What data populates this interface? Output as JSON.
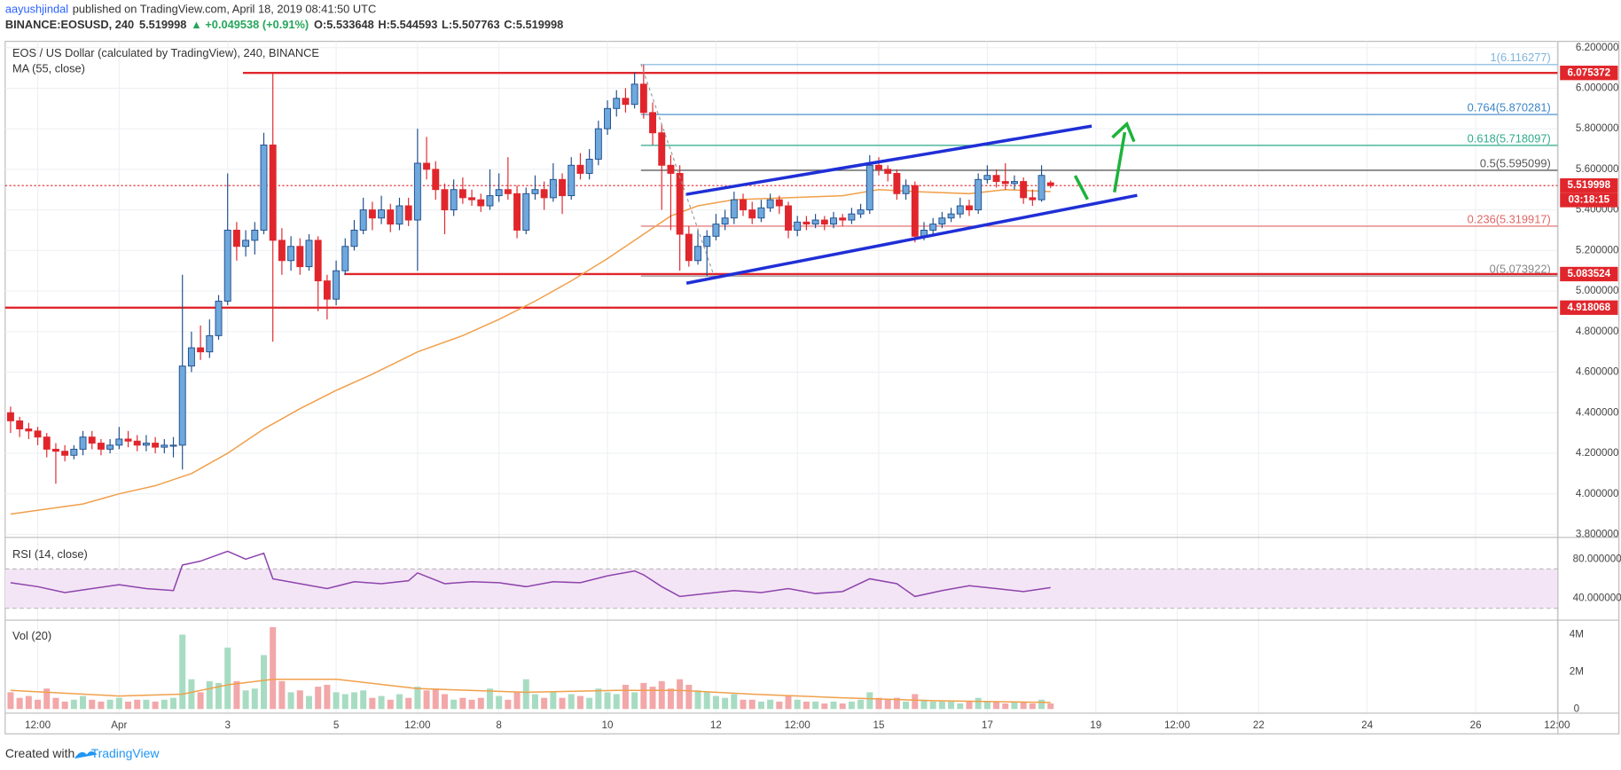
{
  "header": {
    "author": "aayushjindal",
    "published": "published on TradingView.com, April 18, 2019 08:41:50 UTC",
    "symbol": "BINANCE:EOSUSD, 240",
    "change": "▲ +0.049538 (+0.91%)",
    "ohlc_labels": [
      "O:",
      "H:",
      "L:",
      "C:"
    ]
  },
  "chart_data": {
    "type": "candlestick",
    "title": "EOS / US Dollar (calculated by TradingView), 240, BINANCE",
    "ma_label": "MA (55, close)",
    "up_color": "#6fa8dc",
    "up_border": "#1f4e8c",
    "down_color": "#e0262c",
    "grid": true,
    "ylim": [
      3.785,
      6.231
    ],
    "yticks": [
      {
        "value": 3.8,
        "label": "3.800000"
      },
      {
        "value": 4.0,
        "label": "4.000000"
      },
      {
        "value": 4.2,
        "label": "4.200000"
      },
      {
        "value": 4.4,
        "label": "4.400000"
      },
      {
        "value": 4.6,
        "label": "4.600000"
      },
      {
        "value": 4.8,
        "label": "4.800000"
      },
      {
        "value": 5.0,
        "label": "5.000000"
      },
      {
        "value": 5.2,
        "label": "5.200000"
      },
      {
        "value": 5.4,
        "label": "5.400000"
      },
      {
        "value": 5.6,
        "label": "5.600000"
      },
      {
        "value": 5.8,
        "label": "5.800000"
      },
      {
        "value": 6.0,
        "label": "6.000000"
      },
      {
        "value": 6.2,
        "label": "6.200000"
      }
    ],
    "xlim": [
      -12.6,
      159.1
    ],
    "xticks": [
      {
        "value": -9,
        "label": "12:00"
      },
      {
        "value": 0,
        "label": "Apr"
      },
      {
        "value": 12,
        "label": "3"
      },
      {
        "value": 24,
        "label": "5"
      },
      {
        "value": 33,
        "label": "12:00"
      },
      {
        "value": 42,
        "label": "8"
      },
      {
        "value": 54,
        "label": "10"
      },
      {
        "value": 66,
        "label": "12"
      },
      {
        "value": 75,
        "label": "12:00"
      },
      {
        "value": 84,
        "label": "15"
      },
      {
        "value": 96,
        "label": "17"
      },
      {
        "value": 108,
        "label": "19"
      },
      {
        "value": 117,
        "label": "12:00"
      },
      {
        "value": 126,
        "label": "22"
      },
      {
        "value": 138,
        "label": "24"
      },
      {
        "value": 150,
        "label": "26"
      },
      {
        "value": 159,
        "label": "12:00"
      }
    ],
    "x": [
      -12,
      -11,
      -10,
      -9,
      -8,
      -7,
      -6,
      -5,
      -4,
      -3,
      -2,
      -1,
      0,
      1,
      2,
      3,
      4,
      5,
      6,
      7,
      8,
      9,
      10,
      11,
      12,
      13,
      14,
      15,
      16,
      17,
      18,
      19,
      20,
      21,
      22,
      23,
      24,
      25,
      26,
      27,
      28,
      29,
      30,
      31,
      32,
      33,
      34,
      35,
      36,
      37,
      38,
      39,
      40,
      41,
      42,
      43,
      44,
      45,
      46,
      47,
      48,
      49,
      50,
      51,
      52,
      53,
      54,
      55,
      56,
      57,
      58,
      59,
      60,
      61,
      62,
      63,
      64,
      65,
      66,
      67,
      68,
      69,
      70,
      71,
      72,
      73,
      74,
      75,
      76,
      77,
      78,
      79,
      80,
      81,
      82,
      83,
      84,
      85,
      86,
      87,
      88,
      89,
      90,
      91,
      92,
      93,
      94,
      95,
      96,
      97,
      98,
      99,
      100,
      101,
      102,
      103
    ],
    "candles": [
      [
        4.4,
        4.43,
        4.3,
        4.36
      ],
      [
        4.36,
        4.38,
        4.28,
        4.32
      ],
      [
        4.32,
        4.35,
        4.27,
        4.31
      ],
      [
        4.31,
        4.33,
        4.24,
        4.28
      ],
      [
        4.28,
        4.3,
        4.18,
        4.22
      ],
      [
        4.22,
        4.25,
        4.05,
        4.21
      ],
      [
        4.21,
        4.24,
        4.16,
        4.19
      ],
      [
        4.19,
        4.24,
        4.17,
        4.22
      ],
      [
        4.22,
        4.31,
        4.19,
        4.28
      ],
      [
        4.28,
        4.31,
        4.22,
        4.25
      ],
      [
        4.25,
        4.27,
        4.19,
        4.22
      ],
      [
        4.22,
        4.27,
        4.2,
        4.24
      ],
      [
        4.24,
        4.33,
        4.22,
        4.27
      ],
      [
        4.27,
        4.31,
        4.23,
        4.26
      ],
      [
        4.26,
        4.29,
        4.21,
        4.24
      ],
      [
        4.24,
        4.29,
        4.21,
        4.25
      ],
      [
        4.25,
        4.28,
        4.2,
        4.23
      ],
      [
        4.23,
        4.27,
        4.2,
        4.24
      ],
      [
        4.24,
        4.28,
        4.18,
        4.24
      ],
      [
        4.24,
        5.08,
        4.12,
        4.63
      ],
      [
        4.63,
        4.8,
        4.6,
        4.72
      ],
      [
        4.72,
        4.83,
        4.66,
        4.7
      ],
      [
        4.7,
        4.86,
        4.67,
        4.78
      ],
      [
        4.78,
        4.98,
        4.76,
        4.95
      ],
      [
        4.95,
        5.58,
        4.93,
        5.3
      ],
      [
        5.3,
        5.34,
        5.15,
        5.22
      ],
      [
        5.22,
        5.3,
        5.17,
        5.25
      ],
      [
        5.25,
        5.34,
        5.18,
        5.3
      ],
      [
        5.3,
        5.78,
        5.28,
        5.72
      ],
      [
        5.72,
        6.08,
        4.75,
        5.25
      ],
      [
        5.25,
        5.31,
        5.08,
        5.15
      ],
      [
        5.15,
        5.27,
        5.1,
        5.22
      ],
      [
        5.22,
        5.26,
        5.08,
        5.12
      ],
      [
        5.12,
        5.28,
        5.1,
        5.25
      ],
      [
        5.25,
        5.27,
        4.9,
        5.05
      ],
      [
        5.05,
        5.08,
        4.86,
        4.96
      ],
      [
        4.96,
        5.15,
        4.93,
        5.1
      ],
      [
        5.1,
        5.26,
        5.08,
        5.22
      ],
      [
        5.22,
        5.35,
        5.2,
        5.3
      ],
      [
        5.3,
        5.46,
        5.28,
        5.4
      ],
      [
        5.4,
        5.44,
        5.3,
        5.36
      ],
      [
        5.36,
        5.47,
        5.33,
        5.4
      ],
      [
        5.4,
        5.43,
        5.29,
        5.33
      ],
      [
        5.33,
        5.46,
        5.3,
        5.42
      ],
      [
        5.42,
        5.46,
        5.32,
        5.35
      ],
      [
        5.35,
        5.8,
        5.1,
        5.63
      ],
      [
        5.63,
        5.76,
        5.55,
        5.6
      ],
      [
        5.6,
        5.64,
        5.45,
        5.5
      ],
      [
        5.5,
        5.53,
        5.28,
        5.4
      ],
      [
        5.4,
        5.55,
        5.37,
        5.5
      ],
      [
        5.5,
        5.56,
        5.43,
        5.46
      ],
      [
        5.46,
        5.5,
        5.42,
        5.45
      ],
      [
        5.45,
        5.48,
        5.39,
        5.42
      ],
      [
        5.42,
        5.6,
        5.4,
        5.47
      ],
      [
        5.47,
        5.58,
        5.44,
        5.5
      ],
      [
        5.5,
        5.66,
        5.45,
        5.48
      ],
      [
        5.48,
        5.52,
        5.26,
        5.3
      ],
      [
        5.3,
        5.51,
        5.28,
        5.48
      ],
      [
        5.48,
        5.57,
        5.45,
        5.5
      ],
      [
        5.5,
        5.54,
        5.4,
        5.46
      ],
      [
        5.46,
        5.63,
        5.44,
        5.55
      ],
      [
        5.55,
        5.58,
        5.38,
        5.47
      ],
      [
        5.47,
        5.66,
        5.45,
        5.62
      ],
      [
        5.62,
        5.68,
        5.55,
        5.58
      ],
      [
        5.58,
        5.7,
        5.55,
        5.65
      ],
      [
        5.65,
        5.84,
        5.62,
        5.8
      ],
      [
        5.8,
        5.94,
        5.77,
        5.9
      ],
      [
        5.9,
        5.99,
        5.86,
        5.95
      ],
      [
        5.95,
        6.0,
        5.88,
        5.92
      ],
      [
        5.92,
        6.08,
        5.9,
        6.02
      ],
      [
        6.02,
        6.116,
        5.85,
        5.88
      ],
      [
        5.88,
        5.93,
        5.72,
        5.78
      ],
      [
        5.78,
        5.82,
        5.4,
        5.62
      ],
      [
        5.62,
        5.67,
        5.3,
        5.58
      ],
      [
        5.58,
        5.62,
        5.1,
        5.28
      ],
      [
        5.28,
        5.32,
        5.12,
        5.15
      ],
      [
        5.15,
        5.3,
        5.13,
        5.22
      ],
      [
        5.22,
        5.3,
        5.074,
        5.27
      ],
      [
        5.27,
        5.38,
        5.25,
        5.33
      ],
      [
        5.33,
        5.4,
        5.3,
        5.36
      ],
      [
        5.36,
        5.49,
        5.33,
        5.45
      ],
      [
        5.45,
        5.48,
        5.37,
        5.4
      ],
      [
        5.4,
        5.44,
        5.33,
        5.36
      ],
      [
        5.36,
        5.45,
        5.34,
        5.41
      ],
      [
        5.41,
        5.48,
        5.39,
        5.45
      ],
      [
        5.45,
        5.47,
        5.38,
        5.42
      ],
      [
        5.42,
        5.44,
        5.26,
        5.3
      ],
      [
        5.3,
        5.37,
        5.27,
        5.34
      ],
      [
        5.34,
        5.37,
        5.3,
        5.33
      ],
      [
        5.33,
        5.38,
        5.31,
        5.35
      ],
      [
        5.35,
        5.37,
        5.3,
        5.33
      ],
      [
        5.33,
        5.39,
        5.31,
        5.36
      ],
      [
        5.36,
        5.38,
        5.32,
        5.35
      ],
      [
        5.35,
        5.41,
        5.33,
        5.38
      ],
      [
        5.38,
        5.43,
        5.36,
        5.4
      ],
      [
        5.4,
        5.67,
        5.38,
        5.62
      ],
      [
        5.62,
        5.66,
        5.57,
        5.6
      ],
      [
        5.6,
        5.62,
        5.54,
        5.58
      ],
      [
        5.58,
        5.6,
        5.45,
        5.48
      ],
      [
        5.48,
        5.55,
        5.45,
        5.52
      ],
      [
        5.52,
        5.54,
        5.24,
        5.27
      ],
      [
        5.27,
        5.34,
        5.25,
        5.3
      ],
      [
        5.3,
        5.36,
        5.28,
        5.33
      ],
      [
        5.33,
        5.39,
        5.31,
        5.36
      ],
      [
        5.36,
        5.41,
        5.34,
        5.38
      ],
      [
        5.38,
        5.46,
        5.36,
        5.42
      ],
      [
        5.42,
        5.45,
        5.37,
        5.4
      ],
      [
        5.4,
        5.58,
        5.38,
        5.55
      ],
      [
        5.55,
        5.62,
        5.53,
        5.57
      ],
      [
        5.57,
        5.6,
        5.51,
        5.54
      ],
      [
        5.54,
        5.63,
        5.5,
        5.53
      ],
      [
        5.53,
        5.57,
        5.5,
        5.54
      ],
      [
        5.54,
        5.56,
        5.43,
        5.46
      ],
      [
        5.46,
        5.5,
        5.42,
        5.45
      ],
      [
        5.45,
        5.62,
        5.44,
        5.57
      ],
      [
        5.533648,
        5.544593,
        5.507763,
        5.519998
      ]
    ],
    "ma": {
      "color": "#f0a04b",
      "x": [
        -12,
        -4,
        0,
        4,
        8,
        12,
        16,
        20,
        24,
        28,
        33,
        38,
        42,
        46,
        50,
        54,
        58,
        61,
        64,
        68,
        74,
        80,
        84,
        88,
        94,
        98,
        103
      ],
      "values": [
        3.9,
        3.95,
        4.0,
        4.04,
        4.1,
        4.2,
        4.32,
        4.42,
        4.51,
        4.59,
        4.7,
        4.78,
        4.86,
        4.95,
        5.05,
        5.16,
        5.28,
        5.37,
        5.42,
        5.45,
        5.46,
        5.47,
        5.5,
        5.49,
        5.48,
        5.5,
        5.49
      ]
    },
    "levels": [
      {
        "value": 6.075372,
        "color": "#e0262c"
      },
      {
        "value": 5.083524,
        "color": "#e0262c"
      },
      {
        "value": 4.918068,
        "color": "#e0262c"
      }
    ],
    "countdown": "03:18:15",
    "fib": [
      {
        "price": 6.116277,
        "label": "1(6.116277)",
        "color": "#7fb3dc"
      },
      {
        "price": 5.870281,
        "label": "0.764(5.870281)",
        "color": "#3d85c6"
      },
      {
        "price": 5.718097,
        "label": "0.618(5.718097)",
        "color": "#2eaa8a"
      },
      {
        "price": 5.595099,
        "label": "0.5(5.595099)",
        "color": "#555555"
      },
      {
        "price": 5.319917,
        "label": "0.236(5.319917)",
        "color": "#e06666"
      },
      {
        "price": 5.073922,
        "label": "0(5.073922)",
        "color": "#888888"
      }
    ]
  },
  "rsi": {
    "label": "RSI (14, close)",
    "color": "#8e44ad",
    "ylim": [
      20,
      100
    ],
    "band": [
      30,
      70
    ],
    "yticks": [
      {
        "value": 80,
        "label": "80.000000"
      },
      {
        "value": 40,
        "label": "40.000000"
      }
    ],
    "x": [
      -12,
      -9,
      -6,
      -3,
      0,
      3,
      6,
      7,
      9,
      12,
      14,
      16,
      17,
      20,
      23,
      26,
      29,
      32,
      33,
      36,
      39,
      42,
      45,
      48,
      51,
      54,
      57,
      58,
      60,
      62,
      65,
      68,
      71,
      74,
      77,
      80,
      83,
      86,
      88,
      91,
      94,
      97,
      100,
      103
    ],
    "values": [
      56,
      52,
      46,
      50,
      54,
      50,
      48,
      74,
      78,
      88,
      80,
      86,
      60,
      55,
      50,
      57,
      55,
      58,
      66,
      55,
      57,
      56,
      52,
      57,
      56,
      63,
      68,
      64,
      52,
      42,
      45,
      48,
      46,
      50,
      45,
      47,
      60,
      55,
      42,
      48,
      53,
      50,
      47,
      51
    ]
  },
  "volume": {
    "label": "Vol (20)",
    "up_color": "#a8dcc2",
    "down_color": "#f2a7a9",
    "ylim": [
      0,
      4500000
    ],
    "yticks": [
      0,
      {
        "value": 2000000,
        "label": "2M"
      },
      {
        "value": 4000000,
        "label": "4M"
      }
    ],
    "values": [
      900000,
      600000,
      700000,
      500000,
      1100000,
      600000,
      400000,
      500000,
      700000,
      500000,
      400000,
      500000,
      600000,
      400000,
      500000,
      500000,
      400000,
      500000,
      600000,
      4000000,
      1600000,
      900000,
      1500000,
      1400000,
      3300000,
      1500000,
      1000000,
      1100000,
      2900000,
      4400000,
      1500000,
      900000,
      1000000,
      700000,
      1200000,
      1300000,
      900000,
      800000,
      900000,
      1000000,
      600000,
      700000,
      500000,
      800000,
      600000,
      1200000,
      1000000,
      1100000,
      800000,
      500000,
      600000,
      500000,
      600000,
      1100000,
      700000,
      500000,
      900000,
      1600000,
      800000,
      600000,
      900000,
      600000,
      800000,
      700000,
      600000,
      1100000,
      900000,
      800000,
      1300000,
      900000,
      1400000,
      1200000,
      1500000,
      1100000,
      1600000,
      1300000,
      1000000,
      900000,
      700000,
      600000,
      800000,
      500000,
      500000,
      400000,
      500000,
      400000,
      700000,
      500000,
      400000,
      400000,
      300000,
      400000,
      300000,
      400000,
      500000,
      900000,
      600000,
      500000,
      600000,
      400000,
      800000,
      500000,
      400000,
      400000,
      400000,
      300000,
      400000,
      600000,
      400000,
      400000,
      300000,
      400000,
      400000,
      300000,
      500000,
      300000
    ],
    "ma": {
      "color": "#f0a04b",
      "x": [
        -12,
        0,
        7,
        12,
        17,
        24,
        33,
        45,
        55,
        62,
        70,
        80,
        90,
        103
      ],
      "values": [
        1000000,
        700000,
        800000,
        1300000,
        1600000,
        1600000,
        1100000,
        900000,
        1000000,
        1000000,
        800000,
        600000,
        450000,
        350000
      ]
    }
  },
  "footer": {
    "created": "Created with",
    "brand": "TradingView"
  }
}
